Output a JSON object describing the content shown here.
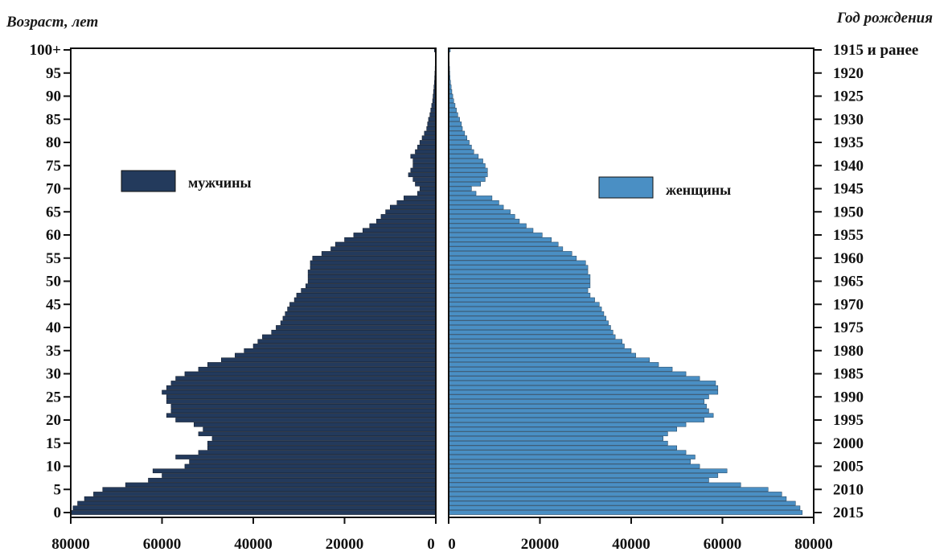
{
  "chart_data": {
    "type": "bar",
    "orientation": "horizontal-population-pyramid",
    "title": "",
    "left_axis_title": "Возраст, лет",
    "right_axis_title": "Год рождения",
    "age_tick_labels": [
      "0",
      "5",
      "10",
      "15",
      "20",
      "25",
      "30",
      "35",
      "40",
      "45",
      "50",
      "55",
      "60",
      "65",
      "70",
      "75",
      "80",
      "85",
      "90",
      "95",
      "100+"
    ],
    "birth_year_tick_labels": [
      "2015",
      "2010",
      "2005",
      "2000",
      "1995",
      "1990",
      "1985",
      "1980",
      "1975",
      "1970",
      "1965",
      "1960",
      "1955",
      "1950",
      "1945",
      "1940",
      "1935",
      "1930",
      "1925",
      "1920",
      "1915 и ранее"
    ],
    "male_x_tick_labels": [
      "80000",
      "60000",
      "40000",
      "20000",
      "0"
    ],
    "female_x_tick_labels": [
      "0",
      "20000",
      "40000",
      "60000",
      "80000"
    ],
    "xlim": [
      0,
      80000
    ],
    "ages": [
      0,
      1,
      2,
      3,
      4,
      5,
      6,
      7,
      8,
      9,
      10,
      11,
      12,
      13,
      14,
      15,
      16,
      17,
      18,
      19,
      20,
      21,
      22,
      23,
      24,
      25,
      26,
      27,
      28,
      29,
      30,
      31,
      32,
      33,
      34,
      35,
      36,
      37,
      38,
      39,
      40,
      41,
      42,
      43,
      44,
      45,
      46,
      47,
      48,
      49,
      50,
      51,
      52,
      53,
      54,
      55,
      56,
      57,
      58,
      59,
      60,
      61,
      62,
      63,
      64,
      65,
      66,
      67,
      68,
      69,
      70,
      71,
      72,
      73,
      74,
      75,
      76,
      77,
      78,
      79,
      80,
      81,
      82,
      83,
      84,
      85,
      86,
      87,
      88,
      89,
      90,
      91,
      92,
      93,
      94,
      95,
      96,
      97,
      98,
      99,
      100
    ],
    "series": [
      {
        "name": "мужчины",
        "color": "#233a5c",
        "values": [
          80000,
          79500,
          78500,
          77000,
          75000,
          73000,
          68000,
          63000,
          60000,
          62000,
          55000,
          54000,
          57000,
          52000,
          50000,
          50000,
          49000,
          52000,
          51000,
          53000,
          57000,
          59000,
          58000,
          58000,
          59000,
          59000,
          60000,
          59000,
          58000,
          57000,
          55000,
          52000,
          50000,
          47000,
          44000,
          42000,
          40000,
          39000,
          38000,
          36000,
          35000,
          34000,
          33500,
          33000,
          32500,
          32000,
          31000,
          30500,
          29500,
          28500,
          28000,
          28000,
          28000,
          27500,
          27500,
          27000,
          25000,
          23000,
          22000,
          20000,
          18000,
          16000,
          14500,
          13000,
          12000,
          11000,
          10000,
          8500,
          7000,
          4000,
          3500,
          4500,
          5000,
          6000,
          5500,
          5000,
          5000,
          5500,
          4500,
          4000,
          3500,
          3000,
          2500,
          2000,
          1800,
          1600,
          1300,
          1100,
          900,
          700,
          600,
          500,
          400,
          300,
          250,
          200,
          150,
          120,
          100,
          80,
          300
        ]
      },
      {
        "name": "женщины",
        "color": "#4a8fc4",
        "values": [
          77500,
          77000,
          76000,
          74000,
          73000,
          70000,
          64000,
          57000,
          59000,
          61000,
          55000,
          53000,
          54000,
          52000,
          50000,
          48000,
          47000,
          48000,
          50000,
          52000,
          56000,
          58000,
          57000,
          56500,
          56000,
          57000,
          59000,
          59000,
          58500,
          55000,
          52000,
          49000,
          46000,
          44000,
          41000,
          40000,
          38500,
          38000,
          36500,
          36000,
          35500,
          35000,
          34500,
          34000,
          33500,
          33000,
          32000,
          31000,
          30500,
          31000,
          31000,
          31000,
          30500,
          30500,
          30000,
          28000,
          27000,
          25000,
          24000,
          22500,
          20500,
          18500,
          17000,
          15500,
          14500,
          13500,
          12000,
          11000,
          9500,
          6000,
          5000,
          7000,
          8000,
          8500,
          8500,
          8000,
          7500,
          6500,
          5500,
          5000,
          4500,
          4000,
          3500,
          3000,
          2800,
          2400,
          2000,
          1700,
          1400,
          1100,
          900,
          700,
          550,
          400,
          300,
          250,
          200,
          150,
          100,
          80,
          350
        ]
      }
    ]
  }
}
